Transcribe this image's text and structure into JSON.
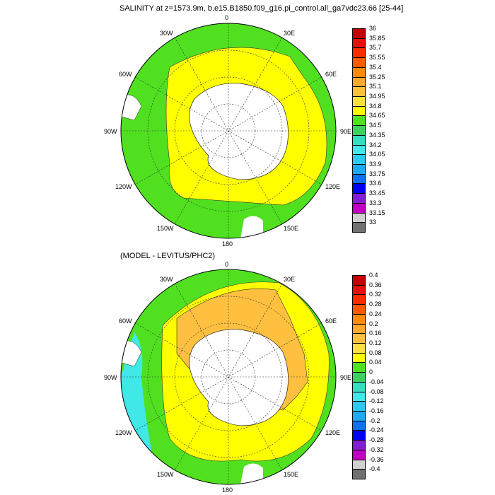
{
  "titles": {
    "main": "SALINITY at z=1573.9m, b.e15.B1850.f09_g16.pi_control.all_ga7vdc23.66 [25-44]",
    "diff": "(MODEL - LEVITUS/PHC2)"
  },
  "map_labels": {
    "top": [
      "0",
      "30E",
      "60E",
      "90E",
      "120E",
      "150E",
      "180",
      "150W",
      "120W",
      "90W",
      "60W",
      "30W"
    ],
    "bottom": [
      "0",
      "30E",
      "60E",
      "90E",
      "120E",
      "150E",
      "180",
      "150W",
      "120W",
      "90W",
      "60W",
      "30W"
    ]
  },
  "colorbar_top": {
    "levels": [
      "36",
      "35.85",
      "35.7",
      "35.55",
      "35.4",
      "35.25",
      "35.1",
      "34.95",
      "34.8",
      "34.65",
      "34.5",
      "34.35",
      "34.2",
      "34.05",
      "33.9",
      "33.75",
      "33.6",
      "33.45",
      "33.3",
      "33.15",
      "33"
    ],
    "colors": [
      "#c40000",
      "#e61010",
      "#ff2a00",
      "#ff5a00",
      "#ff8a10",
      "#ffa830",
      "#ffc040",
      "#ffe040",
      "#ffff00",
      "#50e020",
      "#40d060",
      "#30e0c0",
      "#40e8e8",
      "#30c8f0",
      "#20a8f0",
      "#1070f0",
      "#0000f0",
      "#8020d0",
      "#c000c0",
      "#d0d0d0",
      "#707070"
    ]
  },
  "colorbar_bottom": {
    "levels": [
      "0.4",
      "0.36",
      "0.32",
      "0.28",
      "0.24",
      "0.2",
      "0.16",
      "0.12",
      "0.08",
      "0.04",
      "0",
      "-0.04",
      "-0.08",
      "-0.12",
      "-0.16",
      "-0.2",
      "-0.24",
      "-0.28",
      "-0.32",
      "-0.36",
      "-0.4"
    ],
    "colors": [
      "#c40000",
      "#e61010",
      "#ff2a00",
      "#ff5a00",
      "#ff8a10",
      "#ffa830",
      "#ffc040",
      "#ffe040",
      "#ffff00",
      "#50e020",
      "#40d060",
      "#30e0c0",
      "#40e8e8",
      "#30c8f0",
      "#20a8f0",
      "#1070f0",
      "#0000f0",
      "#8020d0",
      "#c000c0",
      "#d0d0d0",
      "#707070"
    ]
  },
  "field_colors": {
    "green": "#50e020",
    "yellow": "#ffff00",
    "orange": "#ffc040",
    "cyan": "#40e8e8",
    "land": "#ffffff"
  }
}
